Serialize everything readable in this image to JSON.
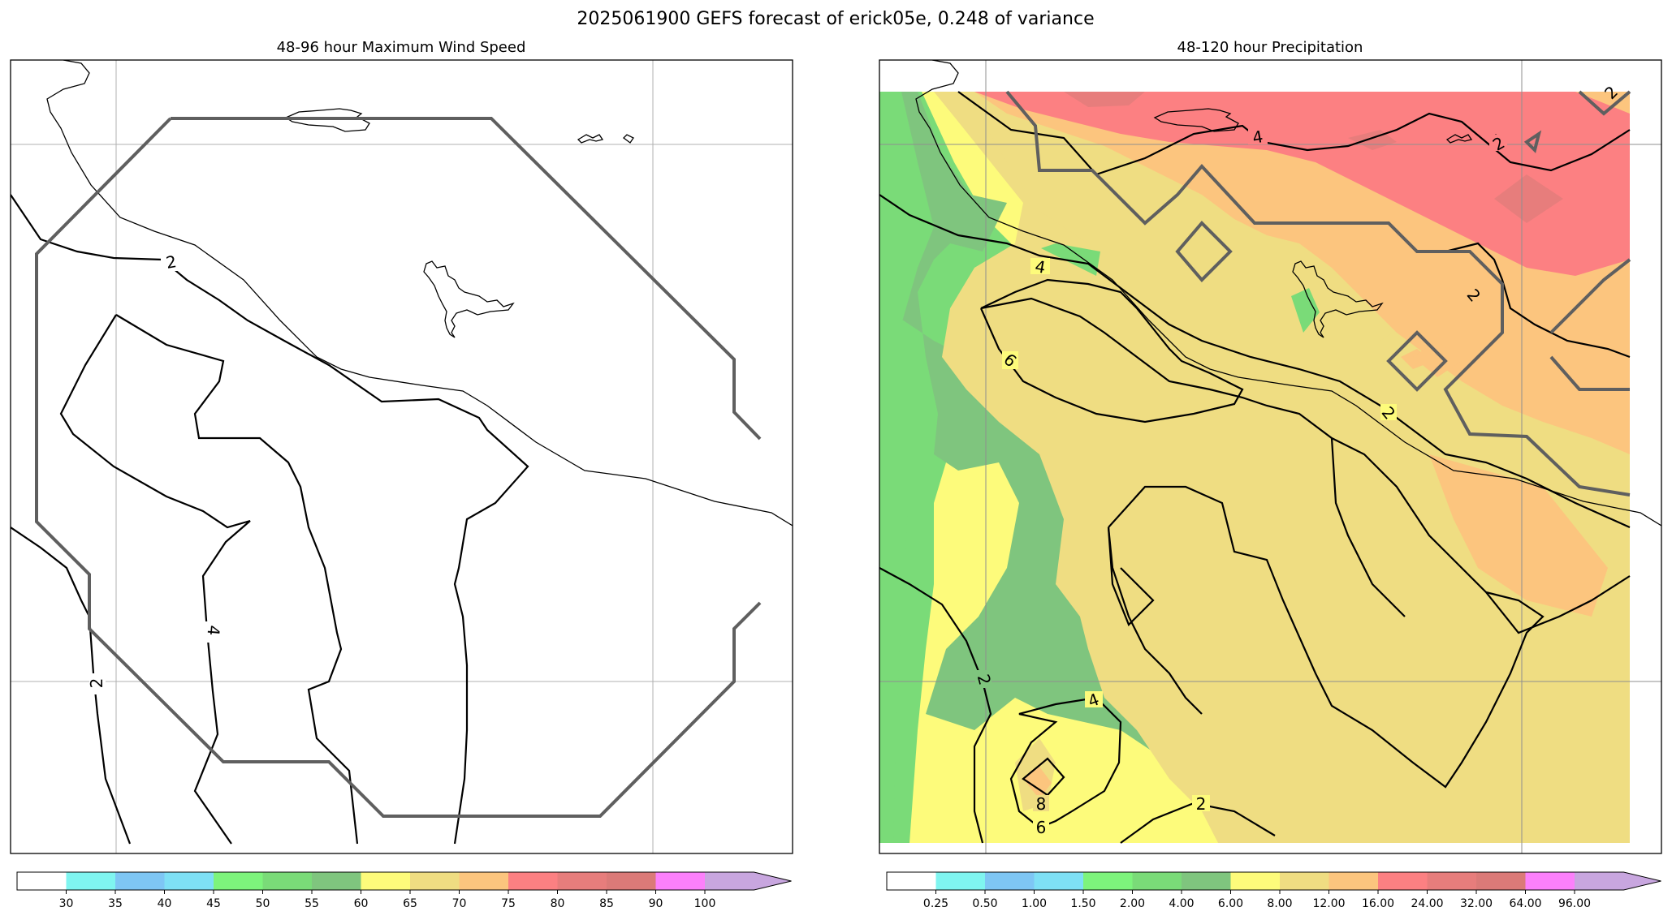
{
  "title": "2025061900 GEFS forecast of erick05e, 0.248 of variance",
  "chart_data": [
    {
      "type": "contour",
      "title": "48-96 hour Maximum Wind Speed",
      "contour_labels": [
        "2",
        "4",
        "2"
      ],
      "colorbar": {
        "ticks": [
          "30",
          "35",
          "40",
          "45",
          "50",
          "55",
          "60",
          "65",
          "70",
          "75",
          "80",
          "85",
          "90",
          "100"
        ],
        "colors": [
          "#ffffff",
          "#7ff5f0",
          "#7ec6f4",
          "#7ee0f5",
          "#7df47c",
          "#7adb78",
          "#7fc57e",
          "#fdfb7b",
          "#efdd82",
          "#fcc57e",
          "#fc8082",
          "#e77d7c",
          "#db7a78",
          "#fc80fb",
          "#c8a6df"
        ],
        "extend": "max"
      },
      "grid": true
    },
    {
      "type": "filled-contour",
      "title": "48-120 hour Precipitation",
      "contour_labels": [
        "2",
        "4",
        "2",
        "4",
        "6",
        "2",
        "2",
        "4",
        "2",
        "8",
        "6"
      ],
      "colorbar": {
        "ticks": [
          "0.25",
          "0.50",
          "1.00",
          "1.50",
          "2.00",
          "4.00",
          "6.00",
          "8.00",
          "12.00",
          "16.00",
          "24.00",
          "32.00",
          "64.00",
          "96.00"
        ],
        "colors": [
          "#ffffff",
          "#7ff5f0",
          "#7ec6f4",
          "#7ee0f5",
          "#7df47c",
          "#7adb78",
          "#7fc57e",
          "#fdfb7b",
          "#efdd82",
          "#fcc57e",
          "#fc8082",
          "#e77d7c",
          "#db7a78",
          "#fc80fb",
          "#c8a6df"
        ],
        "extend": "max"
      },
      "grid": true
    }
  ]
}
